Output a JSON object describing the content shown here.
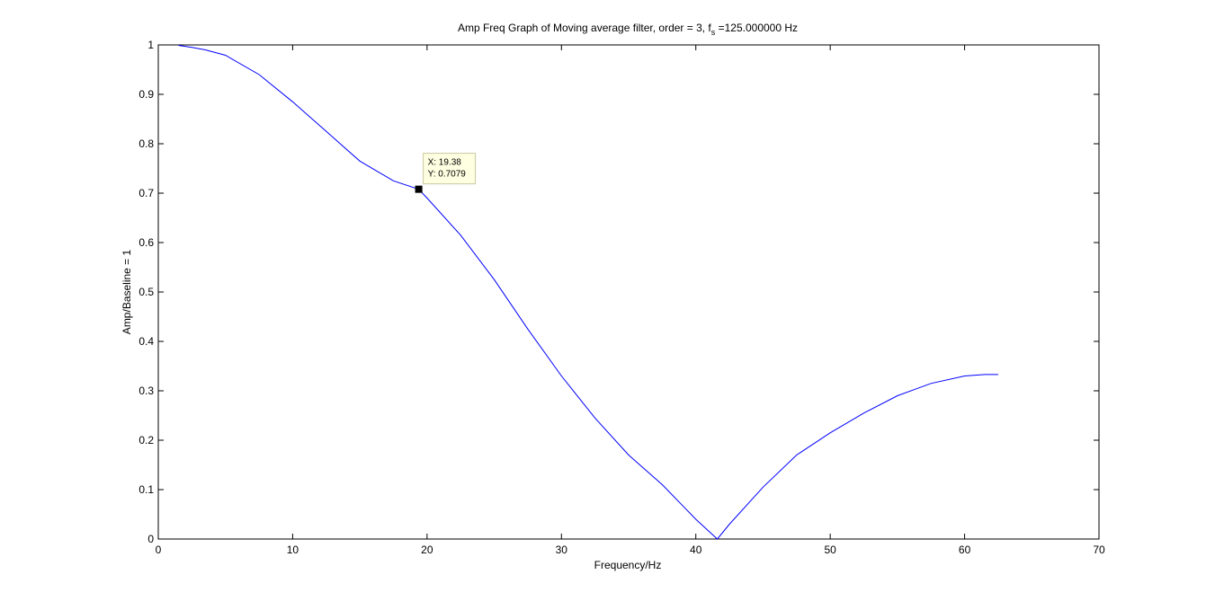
{
  "chart_data": {
    "type": "line",
    "title_main": "Amp Freq Graph of Moving average filter, order = 3, f",
    "title_subscript": "s",
    "title_suffix": " =125.000000 Hz",
    "xlabel": "Frequency/Hz",
    "ylabel": "Amp/Baseline = 1",
    "xlim": [
      0,
      70
    ],
    "ylim": [
      0,
      1
    ],
    "x_ticks": [
      0,
      10,
      20,
      30,
      40,
      50,
      60,
      70
    ],
    "x_tick_labels": [
      "0",
      "10",
      "20",
      "30",
      "40",
      "50",
      "60",
      "70"
    ],
    "y_ticks": [
      0,
      0.1,
      0.2,
      0.3,
      0.4,
      0.5,
      0.6,
      0.7,
      0.8,
      0.9,
      1
    ],
    "y_tick_labels": [
      "0",
      "0.1",
      "0.2",
      "0.3",
      "0.4",
      "0.5",
      "0.6",
      "0.7",
      "0.8",
      "0.9",
      "1"
    ],
    "grid": false,
    "line_color": "#0000ff",
    "series": [
      {
        "x": [
          1.5,
          2.5,
          3.5,
          5,
          7.5,
          10,
          12.5,
          15,
          17.5,
          19.38,
          20,
          22.5,
          25,
          27.5,
          30,
          32.5,
          35,
          37.5,
          40,
          41.6,
          42.5,
          45,
          47.5,
          50,
          52.5,
          55,
          57.5,
          60,
          61.5,
          62.5
        ],
        "y": [
          0.999,
          0.995,
          0.99,
          0.979,
          0.94,
          0.885,
          0.825,
          0.765,
          0.725,
          0.7079,
          0.69,
          0.615,
          0.525,
          0.425,
          0.33,
          0.245,
          0.17,
          0.11,
          0.04,
          0.0,
          0.03,
          0.105,
          0.17,
          0.215,
          0.255,
          0.29,
          0.315,
          0.33,
          0.333,
          0.333
        ]
      }
    ],
    "datatip": {
      "x": 19.38,
      "y": 0.7079,
      "label_x": "X: 19.38",
      "label_y": "Y: 0.7079"
    }
  }
}
